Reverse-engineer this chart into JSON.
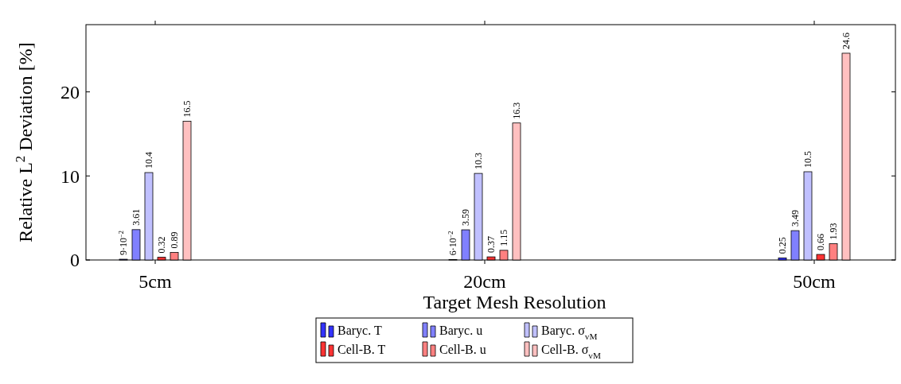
{
  "chart_data": {
    "type": "bar",
    "xlabel": "Target Mesh Resolution",
    "ylabel": "Relative L$^{2}$ Deviation [%]",
    "categories": [
      "5cm",
      "20cm",
      "50cm"
    ],
    "ylim": [
      0,
      28
    ],
    "yticks": [
      0,
      10,
      20
    ],
    "legend": "bottom",
    "grid": false,
    "series": [
      {
        "name": "Baryc. T",
        "color": "#3333ff",
        "values": [
          0.09,
          0.06,
          0.25
        ],
        "value_labels": [
          "9·10$^{−2}$",
          "6·10$^{−2}$",
          "0.25"
        ]
      },
      {
        "name": "Baryc. u",
        "color": "#8080ff",
        "values": [
          3.61,
          3.59,
          3.49
        ],
        "value_labels": [
          "3.61",
          "3.59",
          "3.49"
        ]
      },
      {
        "name": "Baryc. σ$_{vM}$",
        "color": "#c0c0ff",
        "values": [
          10.4,
          10.3,
          10.5
        ],
        "value_labels": [
          "10.4",
          "10.3",
          "10.5"
        ]
      },
      {
        "name": "Cell-B. T",
        "color": "#ff3333",
        "values": [
          0.32,
          0.37,
          0.66
        ],
        "value_labels": [
          "0.32",
          "0.37",
          "0.66"
        ]
      },
      {
        "name": "Cell-B. u",
        "color": "#ff8080",
        "values": [
          0.89,
          1.15,
          1.93
        ],
        "value_labels": [
          "0.89",
          "1.15",
          "1.93"
        ]
      },
      {
        "name": "Cell-B. σ$_{vM}$",
        "color": "#ffc0c0",
        "values": [
          16.5,
          16.3,
          24.6
        ],
        "value_labels": [
          "16.5",
          "16.3",
          "24.6"
        ]
      }
    ]
  }
}
